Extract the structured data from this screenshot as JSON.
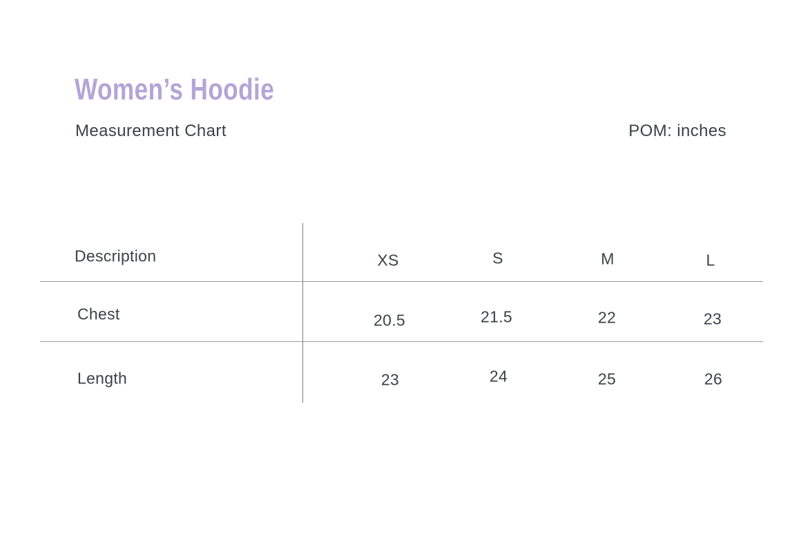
{
  "page": {
    "title": "Women’s Hoodie",
    "subtitle": "Measurement Chart",
    "pom_label": "POM: inches"
  },
  "table": {
    "description_header": "Description",
    "size_headers": [
      "XS",
      "S",
      "M",
      "L"
    ],
    "rows": [
      {
        "label": "Chest",
        "values": [
          "20.5",
          "21.5",
          "22",
          "23"
        ]
      },
      {
        "label": "Length",
        "values": [
          "23",
          "24",
          "25",
          "26"
        ]
      }
    ]
  },
  "colors": {
    "title_purple": "#b3a5d6",
    "text_dark": "#3d4149",
    "rule_vertical": "#7c7c7c",
    "rule_horizontal": "#9a9a9a",
    "background": "#ffffff"
  }
}
